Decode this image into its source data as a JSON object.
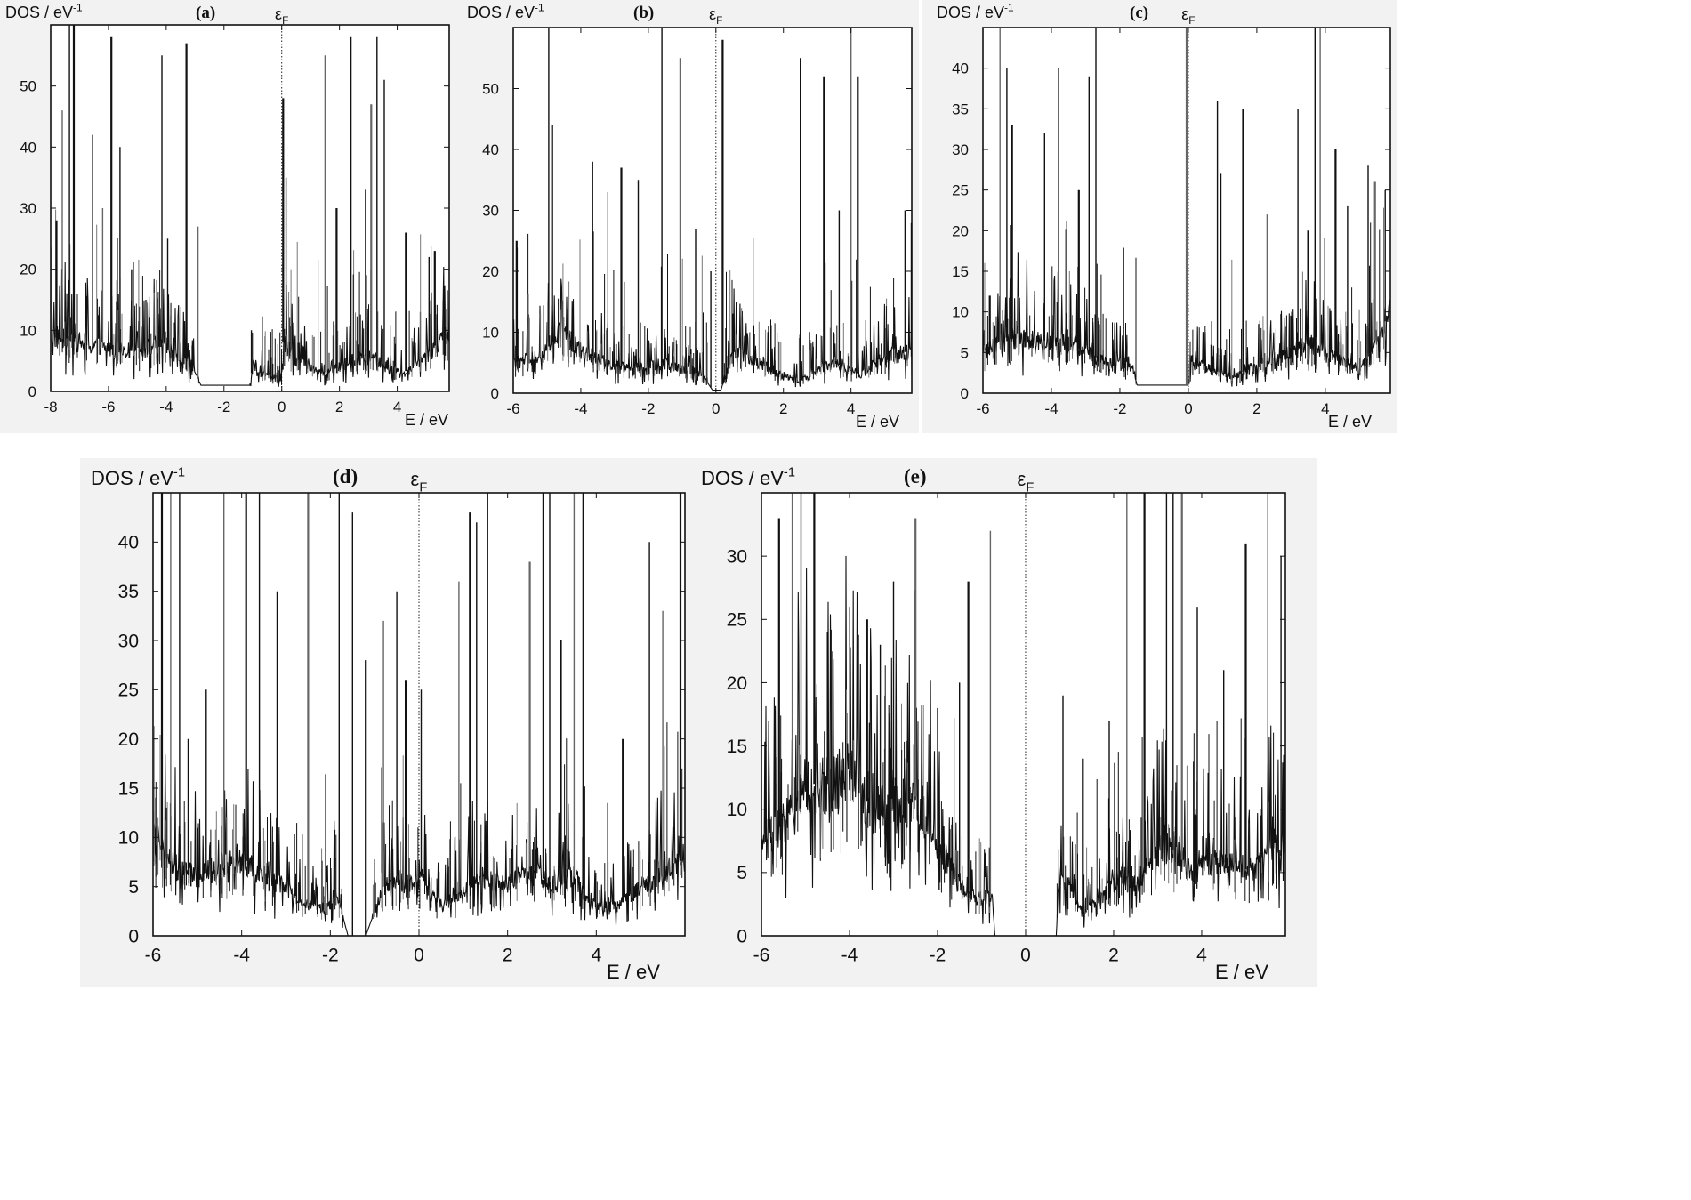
{
  "chart_data": [
    {
      "type": "line",
      "panel_label": "(a)",
      "ylabel": "DOS / eV",
      "ylabel_superscript": "-1",
      "xlabel": "E / eV",
      "fermi_label": "ε",
      "fermi_subscript": "F",
      "xlim": [
        -8.0,
        5.8
      ],
      "ylim": [
        0,
        60
      ],
      "xticks": [
        -8,
        -6,
        -4,
        -2,
        0,
        2,
        4
      ],
      "yticks": [
        0,
        10,
        20,
        30,
        40,
        50
      ],
      "fermi_energy": 0,
      "series": [
        {
          "color": "#111111",
          "baseline": [
            [
              -8.0,
              9
            ],
            [
              -7.0,
              8
            ],
            [
              -6.0,
              7
            ],
            [
              -5.0,
              6.5
            ],
            [
              -4.2,
              8
            ],
            [
              -3.6,
              6
            ],
            [
              -3.05,
              4
            ],
            [
              -2.8,
              1
            ],
            [
              -1.95,
              1
            ],
            [
              -1.1,
              1
            ],
            [
              -1.0,
              5
            ],
            [
              -0.9,
              3
            ],
            [
              -0.4,
              2.5
            ],
            [
              0.0,
              2
            ],
            [
              0.05,
              8
            ],
            [
              0.5,
              5
            ],
            [
              1.4,
              3
            ],
            [
              2.0,
              4
            ],
            [
              3.0,
              6
            ],
            [
              3.6,
              4
            ],
            [
              4.2,
              3
            ],
            [
              4.8,
              5
            ],
            [
              5.4,
              8
            ],
            [
              5.8,
              9
            ]
          ],
          "spikes": [
            [
              -7.8,
              28
            ],
            [
              -7.6,
              46
            ],
            [
              -7.35,
              60
            ],
            [
              -7.2,
              60
            ],
            [
              -6.55,
              42
            ],
            [
              -6.2,
              30
            ],
            [
              -5.9,
              58
            ],
            [
              -5.6,
              40
            ],
            [
              -5.2,
              20
            ],
            [
              -4.7,
              15
            ],
            [
              -4.15,
              55
            ],
            [
              -3.95,
              25
            ],
            [
              -3.3,
              57
            ],
            [
              -2.9,
              27
            ],
            [
              -1.05,
              10
            ],
            [
              0.05,
              48
            ],
            [
              0.15,
              35
            ],
            [
              1.5,
              55
            ],
            [
              1.9,
              30
            ],
            [
              2.4,
              58
            ],
            [
              2.9,
              33
            ],
            [
              3.1,
              47
            ],
            [
              3.3,
              58
            ],
            [
              3.55,
              51
            ],
            [
              4.3,
              26
            ],
            [
              4.8,
              13
            ],
            [
              5.1,
              22
            ],
            [
              5.3,
              23
            ]
          ]
        }
      ]
    },
    {
      "type": "line",
      "panel_label": "(b)",
      "ylabel": "DOS / eV",
      "ylabel_superscript": "-1",
      "xlabel": "E / eV",
      "fermi_label": "ε",
      "fermi_subscript": "F",
      "xlim": [
        -6.0,
        5.8
      ],
      "ylim": [
        0,
        60
      ],
      "xticks": [
        -6,
        -4,
        -2,
        0,
        2,
        4
      ],
      "yticks": [
        0,
        10,
        20,
        30,
        40,
        50
      ],
      "fermi_energy": 0,
      "series": [
        {
          "color": "#111111",
          "baseline": [
            [
              -6.0,
              5
            ],
            [
              -5.2,
              6
            ],
            [
              -4.6,
              10
            ],
            [
              -4.0,
              7
            ],
            [
              -3.2,
              5
            ],
            [
              -2.5,
              4
            ],
            [
              -1.6,
              5
            ],
            [
              -1.0,
              4
            ],
            [
              -0.4,
              3
            ],
            [
              -0.1,
              0.5
            ],
            [
              0.15,
              0.5
            ],
            [
              0.5,
              7
            ],
            [
              1.2,
              5
            ],
            [
              2.0,
              3
            ],
            [
              2.5,
              2
            ],
            [
              3.0,
              4
            ],
            [
              3.5,
              5
            ],
            [
              4.3,
              3
            ],
            [
              5.0,
              6
            ],
            [
              5.8,
              7
            ]
          ],
          "spikes": [
            [
              -5.9,
              25
            ],
            [
              -5.2,
              13
            ],
            [
              -4.95,
              60
            ],
            [
              -4.85,
              44
            ],
            [
              -3.65,
              38
            ],
            [
              -3.2,
              33
            ],
            [
              -2.8,
              37
            ],
            [
              -2.3,
              35
            ],
            [
              -1.6,
              60
            ],
            [
              -1.05,
              55
            ],
            [
              -0.6,
              27
            ],
            [
              -0.15,
              20
            ],
            [
              0.2,
              58
            ],
            [
              1.0,
              10
            ],
            [
              2.5,
              55
            ],
            [
              3.2,
              52
            ],
            [
              3.65,
              30
            ],
            [
              4.0,
              60
            ],
            [
              4.2,
              52
            ],
            [
              5.6,
              30
            ]
          ]
        }
      ]
    },
    {
      "type": "line",
      "panel_label": "(c)",
      "ylabel": "DOS / eV",
      "ylabel_superscript": "-1",
      "xlabel": "E / eV",
      "fermi_label": "ε",
      "fermi_subscript": "F",
      "xlim": [
        -6.0,
        5.9
      ],
      "ylim": [
        0,
        45
      ],
      "xticks": [
        -6,
        -4,
        -2,
        0,
        2,
        4
      ],
      "yticks": [
        0,
        5,
        10,
        15,
        20,
        25,
        30,
        35,
        40
      ],
      "fermi_energy": 0,
      "series": [
        {
          "color": "#111111",
          "baseline": [
            [
              -6.0,
              5
            ],
            [
              -5.0,
              7
            ],
            [
              -3.5,
              6
            ],
            [
              -2.5,
              4
            ],
            [
              -1.6,
              3
            ],
            [
              -1.5,
              1
            ],
            [
              -0.7,
              1
            ],
            [
              0.0,
              1
            ],
            [
              0.1,
              4
            ],
            [
              0.6,
              3
            ],
            [
              1.3,
              2
            ],
            [
              2.0,
              3.5
            ],
            [
              3.0,
              5
            ],
            [
              3.6,
              6
            ],
            [
              4.5,
              4
            ],
            [
              5.0,
              3
            ],
            [
              5.9,
              10
            ]
          ],
          "spikes": [
            [
              -5.8,
              12
            ],
            [
              -5.5,
              45
            ],
            [
              -5.3,
              40
            ],
            [
              -5.15,
              33
            ],
            [
              -4.2,
              32
            ],
            [
              -3.8,
              40
            ],
            [
              -3.2,
              25
            ],
            [
              -2.9,
              39
            ],
            [
              -2.7,
              45
            ],
            [
              -0.05,
              45
            ],
            [
              0.85,
              36
            ],
            [
              0.95,
              27
            ],
            [
              1.6,
              35
            ],
            [
              2.3,
              22
            ],
            [
              3.2,
              35
            ],
            [
              3.5,
              20
            ],
            [
              3.7,
              45
            ],
            [
              3.85,
              45
            ],
            [
              4.3,
              30
            ],
            [
              4.65,
              23
            ],
            [
              5.25,
              28
            ],
            [
              5.45,
              26
            ],
            [
              5.75,
              25
            ]
          ]
        }
      ]
    },
    {
      "type": "line",
      "panel_label": "(d)",
      "ylabel": "DOS / eV",
      "ylabel_superscript": "-1",
      "xlabel": "E / eV",
      "fermi_label": "ε",
      "fermi_subscript": "F",
      "xlim": [
        -6.0,
        6.0
      ],
      "ylim": [
        0,
        45
      ],
      "xticks": [
        -6,
        -4,
        -2,
        0,
        2,
        4
      ],
      "yticks": [
        0,
        5,
        10,
        15,
        20,
        25,
        30,
        35,
        40
      ],
      "fermi_energy": 0,
      "series": [
        {
          "color": "#111111",
          "baseline": [
            [
              -6.0,
              10
            ],
            [
              -5.5,
              7
            ],
            [
              -5.0,
              6
            ],
            [
              -4.5,
              7
            ],
            [
              -4.0,
              8
            ],
            [
              -3.5,
              6
            ],
            [
              -3.0,
              5
            ],
            [
              -2.5,
              3
            ],
            [
              -2.0,
              3
            ],
            [
              -1.9,
              5
            ],
            [
              -1.6,
              0
            ],
            [
              -1.2,
              0
            ],
            [
              -0.8,
              5
            ],
            [
              -0.4,
              5.5
            ],
            [
              0.0,
              5
            ],
            [
              0.05,
              6
            ],
            [
              0.3,
              4
            ],
            [
              0.5,
              3
            ],
            [
              0.8,
              4
            ],
            [
              1.3,
              6
            ],
            [
              2.0,
              5
            ],
            [
              2.5,
              7
            ],
            [
              3.0,
              5
            ],
            [
              3.5,
              6
            ],
            [
              4.0,
              3
            ],
            [
              4.5,
              3
            ],
            [
              5.0,
              5
            ],
            [
              5.5,
              6
            ],
            [
              6.0,
              8
            ]
          ],
          "spikes": [
            [
              -5.8,
              45
            ],
            [
              -5.6,
              45
            ],
            [
              -5.4,
              45
            ],
            [
              -5.2,
              20
            ],
            [
              -4.8,
              25
            ],
            [
              -4.4,
              45
            ],
            [
              -3.9,
              45
            ],
            [
              -3.6,
              45
            ],
            [
              -3.2,
              35
            ],
            [
              -2.5,
              45
            ],
            [
              -1.8,
              45
            ],
            [
              -1.5,
              43
            ],
            [
              -1.2,
              28
            ],
            [
              -0.8,
              32
            ],
            [
              -0.5,
              35
            ],
            [
              -0.3,
              26
            ],
            [
              0.05,
              25
            ],
            [
              0.9,
              36
            ],
            [
              1.15,
              43
            ],
            [
              1.3,
              42
            ],
            [
              1.55,
              45
            ],
            [
              2.5,
              38
            ],
            [
              2.8,
              45
            ],
            [
              2.95,
              45
            ],
            [
              3.2,
              30
            ],
            [
              3.5,
              45
            ],
            [
              3.7,
              45
            ],
            [
              4.6,
              20
            ],
            [
              5.2,
              40
            ],
            [
              5.5,
              33
            ],
            [
              5.9,
              45
            ]
          ]
        }
      ]
    },
    {
      "type": "line",
      "panel_label": "(e)",
      "ylabel": "DOS / eV",
      "ylabel_superscript": "-1",
      "xlabel": "E / eV",
      "fermi_label": "ε",
      "fermi_subscript": "F",
      "xlim": [
        -6.0,
        5.9
      ],
      "ylim": [
        0,
        35
      ],
      "xticks": [
        -6,
        -4,
        -2,
        0,
        2,
        4
      ],
      "yticks": [
        0,
        5,
        10,
        15,
        20,
        25,
        30
      ],
      "fermi_energy": 0,
      "series": [
        {
          "color": "#111111",
          "baseline": [
            [
              -6.0,
              7
            ],
            [
              -5.5,
              9
            ],
            [
              -5.0,
              12
            ],
            [
              -4.5,
              12
            ],
            [
              -4.0,
              13
            ],
            [
              -3.5,
              10
            ],
            [
              -3.0,
              10
            ],
            [
              -2.5,
              11
            ],
            [
              -2.0,
              7
            ],
            [
              -1.6,
              5
            ],
            [
              -1.3,
              3
            ],
            [
              -1.0,
              3
            ],
            [
              -0.75,
              3
            ],
            [
              -0.7,
              0
            ],
            [
              0.0,
              0
            ],
            [
              0.7,
              0
            ],
            [
              0.75,
              5
            ],
            [
              1.0,
              4
            ],
            [
              1.3,
              2
            ],
            [
              1.7,
              3
            ],
            [
              2.2,
              5
            ],
            [
              2.5,
              4
            ],
            [
              2.9,
              6
            ],
            [
              3.3,
              7
            ],
            [
              3.8,
              5
            ],
            [
              4.3,
              6
            ],
            [
              4.8,
              5.5
            ],
            [
              5.2,
              5
            ],
            [
              5.6,
              7
            ],
            [
              5.9,
              6
            ]
          ],
          "spikes": [
            [
              -5.6,
              33
            ],
            [
              -5.3,
              35
            ],
            [
              -5.1,
              35
            ],
            [
              -4.8,
              35
            ],
            [
              -4.5,
              24
            ],
            [
              -4.0,
              26
            ],
            [
              -3.6,
              25
            ],
            [
              -3.3,
              23
            ],
            [
              -3.0,
              28
            ],
            [
              -2.5,
              33
            ],
            [
              -2.0,
              18
            ],
            [
              -1.5,
              20
            ],
            [
              -1.3,
              28
            ],
            [
              -0.8,
              32
            ],
            [
              0.85,
              19
            ],
            [
              1.3,
              14
            ],
            [
              1.9,
              17
            ],
            [
              2.3,
              35
            ],
            [
              2.7,
              35
            ],
            [
              3.2,
              35
            ],
            [
              3.35,
              35
            ],
            [
              3.55,
              35
            ],
            [
              3.9,
              26
            ],
            [
              4.5,
              21
            ],
            [
              5.0,
              31
            ],
            [
              5.5,
              35
            ],
            [
              5.8,
              30
            ]
          ]
        }
      ]
    }
  ]
}
